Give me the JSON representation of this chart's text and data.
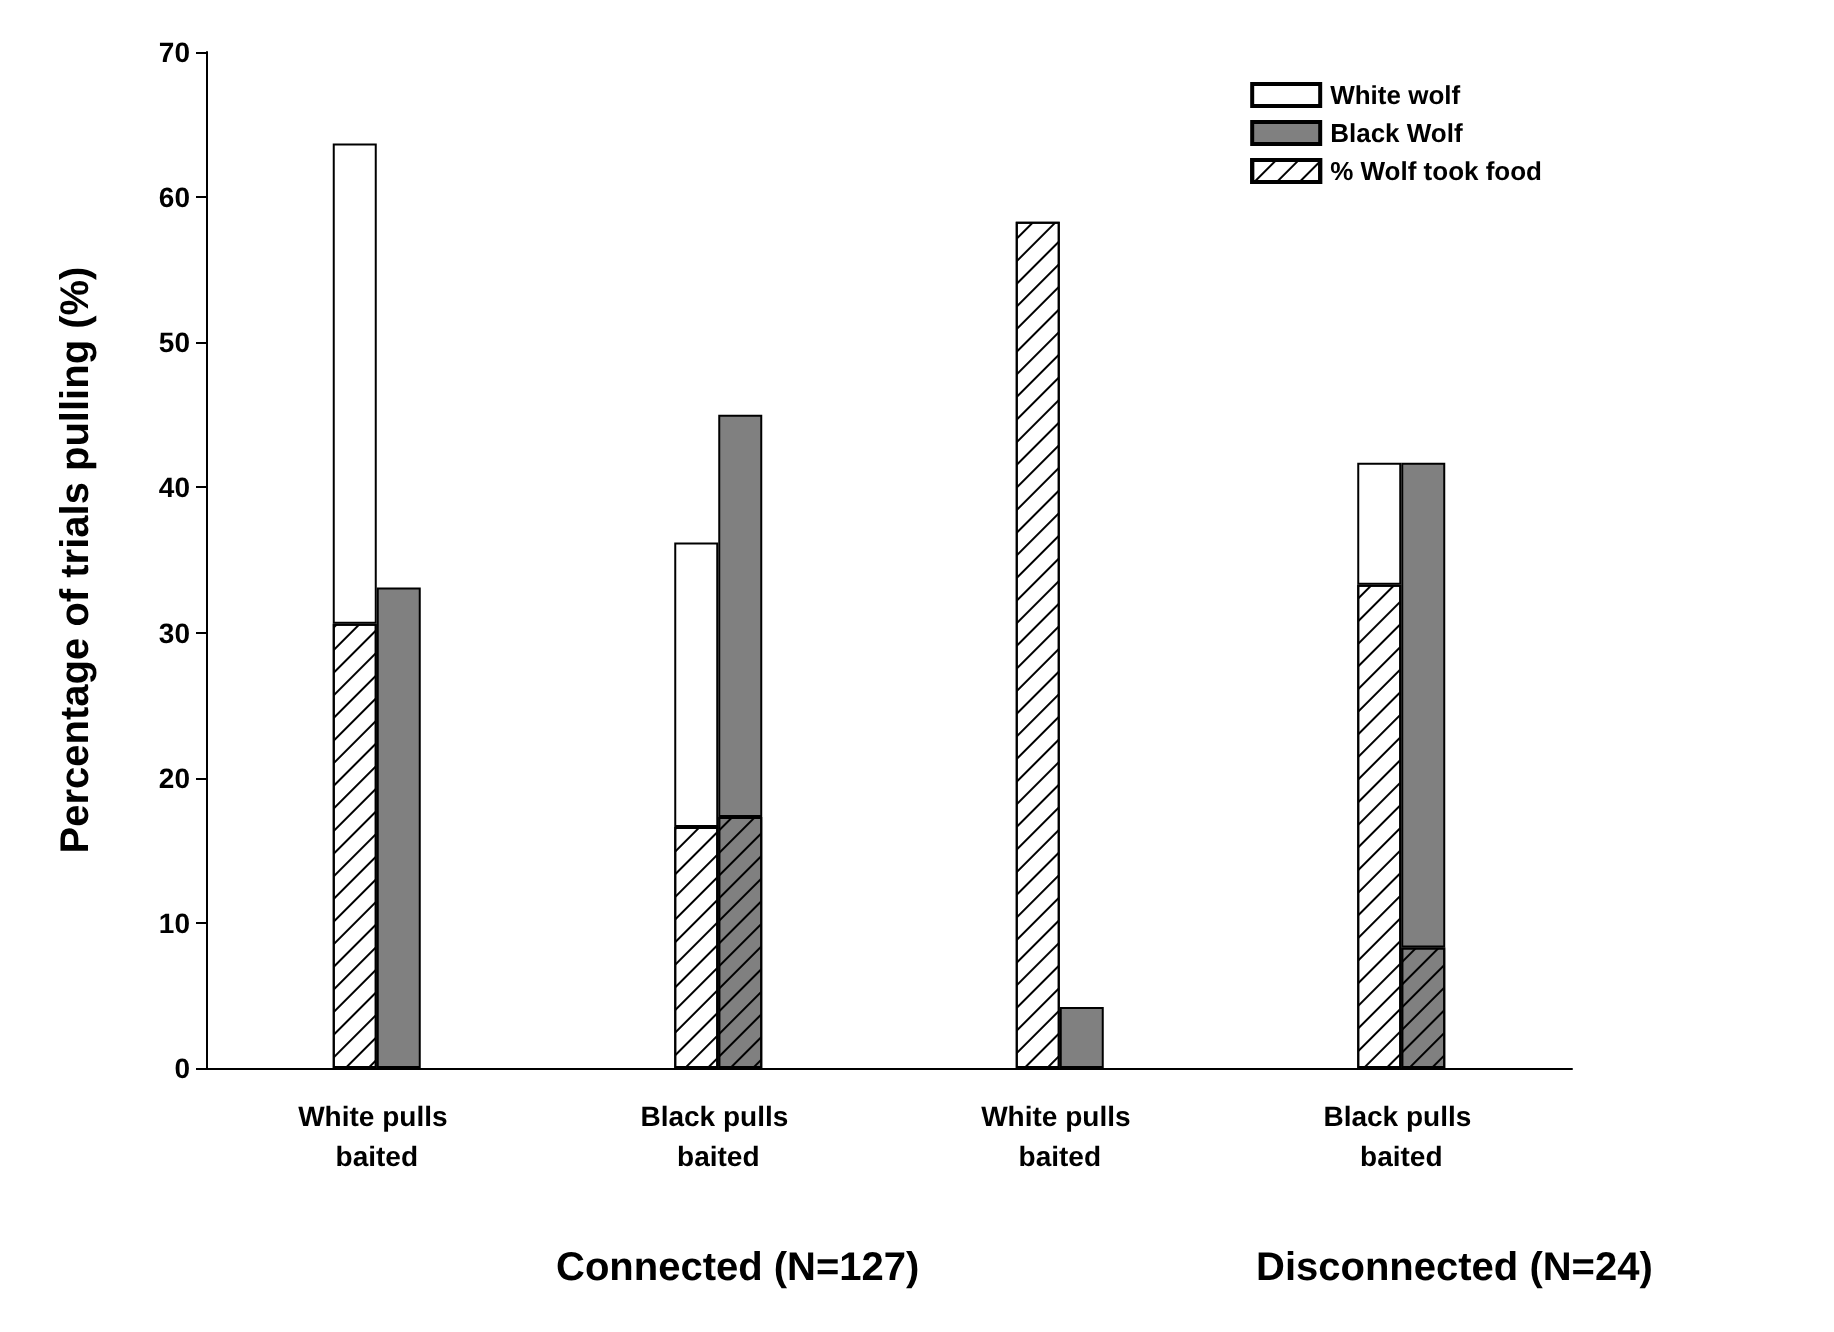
{
  "chart_data": {
    "type": "bar",
    "ylabel": "Percentage of trials pulling (%)",
    "categories": [
      "White pulls baited",
      "Black pulls baited",
      "White pulls baited",
      "Black pulls baited"
    ],
    "series": [
      {
        "name": "White wolf",
        "color": "#ffffff",
        "values": [
          33.1,
          19.6,
          null,
          8.4
        ],
        "base": [
          30.6,
          16.6,
          null,
          33.3
        ]
      },
      {
        "name": "Black Wolf",
        "color": "#808080",
        "values": [
          33.1,
          27.7,
          4.2,
          33.4
        ],
        "base": [
          0,
          17.3,
          0,
          8.3
        ]
      },
      {
        "name": "% Wolf took food",
        "color": "#ffffff",
        "values": [
          30.6,
          16.6,
          58.3,
          33.3
        ]
      },
      {
        "color": "#808080",
        "values": [
          null,
          17.3,
          null,
          8.3
        ]
      }
    ],
    "ylim": [
      0,
      70
    ],
    "yticks": [
      0,
      10,
      20,
      30,
      40,
      50,
      60,
      70
    ],
    "grid": false,
    "legend": "top right",
    "annotations": [
      "Connected (N=127)",
      "Disconnected (N=24)"
    ]
  }
}
